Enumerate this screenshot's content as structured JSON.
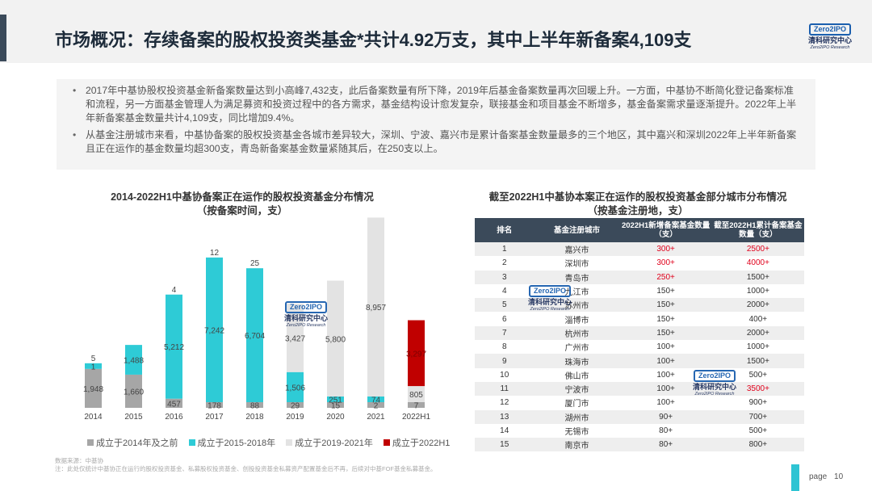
{
  "title": "市场概况：存续备案的股权投资类基金*共计4.92万支，其中上半年新备案4,109支",
  "logo": {
    "mark": "Zero2IPO",
    "cn": "清科研究中心",
    "en": "Zero2IPO Research"
  },
  "bullets": [
    "2017年中基协股权投资基金新备案数量达到小高峰7,432支，此后备案数量有所下降，2019年后基金备案数量再次回暖上升。一方面，中基协不断简化登记备案标准和流程，另一方面基金管理人为满足募资和投资过程中的各方需求，基金结构设计愈发复杂，联接基金和项目基金不断增多，基金备案需求量逐渐提升。2022年上半年新备案基金数量共计4,109支，同比增加9.4%。",
    "从基金注册城市来看，中基协备案的股权投资基金各城市差异较大，深圳、宁波、嘉兴市是累计备案基金数量最多的三个地区，其中嘉兴和深圳2022年上半年新备案且正在运作的基金数量均超300支，青岛新备案基金数量紧随其后，在250支以上。"
  ],
  "chart_title_line1": "2014-2022H1中基协备案正在运作的股权投资基金分布情况",
  "chart_title_line2": "（按备案时间，支）",
  "colors": {
    "grey": "#a6a6a6",
    "cyan": "#2ecbd6",
    "lightgrey": "#e3e3e3",
    "red": "#c00000",
    "dark": "#3b4a5a"
  },
  "chart_data": {
    "type": "bar",
    "stacked": true,
    "categories": [
      "2014",
      "2015",
      "2016",
      "2017",
      "2018",
      "2019",
      "2020",
      "2021",
      "2022H1"
    ],
    "series": [
      {
        "name": "成立于2014年及之前",
        "values": [
          1948,
          1660,
          457,
          178,
          88,
          29,
          15,
          2,
          7
        ]
      },
      {
        "name": "成立于2015-2018年",
        "values": [
          1,
          1488,
          5212,
          7242,
          6704,
          1506,
          251,
          74,
          0
        ]
      },
      {
        "name": "成立于2019-2021年",
        "values": [
          0,
          0,
          0,
          0,
          0,
          3427,
          5800,
          8957,
          805
        ]
      },
      {
        "name": "成立于2022H1",
        "values": [
          0,
          0,
          0,
          0,
          0,
          0,
          0,
          0,
          3297
        ]
      }
    ],
    "top_labels": [
      "5",
      "",
      "4",
      "12",
      "25",
      "",
      "",
      "",
      ""
    ]
  },
  "table_title_line1": "截至2022H1中基协本案正在运作的股权投资基金部分城市分布情况",
  "table_title_line2": "（按基金注册地，支）",
  "table": {
    "headers": [
      "排名",
      "基金注册城市",
      "2022H1新增备案基金数量（支）",
      "截至2022H1累计备案基金数量（支）"
    ],
    "rows": [
      [
        "1",
        "嘉兴市",
        "300+",
        "2500+"
      ],
      [
        "2",
        "深圳市",
        "300+",
        "4000+"
      ],
      [
        "3",
        "青岛市",
        "250+",
        "1500+"
      ],
      [
        "4",
        "九江市",
        "150+",
        "1000+"
      ],
      [
        "5",
        "苏州市",
        "150+",
        "2000+"
      ],
      [
        "6",
        "淄博市",
        "150+",
        "400+"
      ],
      [
        "7",
        "杭州市",
        "150+",
        "2000+"
      ],
      [
        "8",
        "广州市",
        "100+",
        "1000+"
      ],
      [
        "9",
        "珠海市",
        "100+",
        "1500+"
      ],
      [
        "10",
        "佛山市",
        "100+",
        "500+"
      ],
      [
        "11",
        "宁波市",
        "100+",
        "3500+"
      ],
      [
        "12",
        "厦门市",
        "100+",
        "900+"
      ],
      [
        "13",
        "湖州市",
        "90+",
        "700+"
      ],
      [
        "14",
        "无锡市",
        "80+",
        "500+"
      ],
      [
        "15",
        "南京市",
        "80+",
        "800+"
      ]
    ],
    "red_new": [
      0,
      1,
      2
    ],
    "red_total": [
      0,
      1,
      10
    ]
  },
  "footnote_line1": "数据来源：中基协",
  "footnote_line2": "注：此处仅统计中基协正在运行的股权投资基金、私募股权投资基金、创投投资基金私募资产配置基金后不再，后续对中基FOF基金私募基金。",
  "page_label": "page",
  "page_number": "10"
}
